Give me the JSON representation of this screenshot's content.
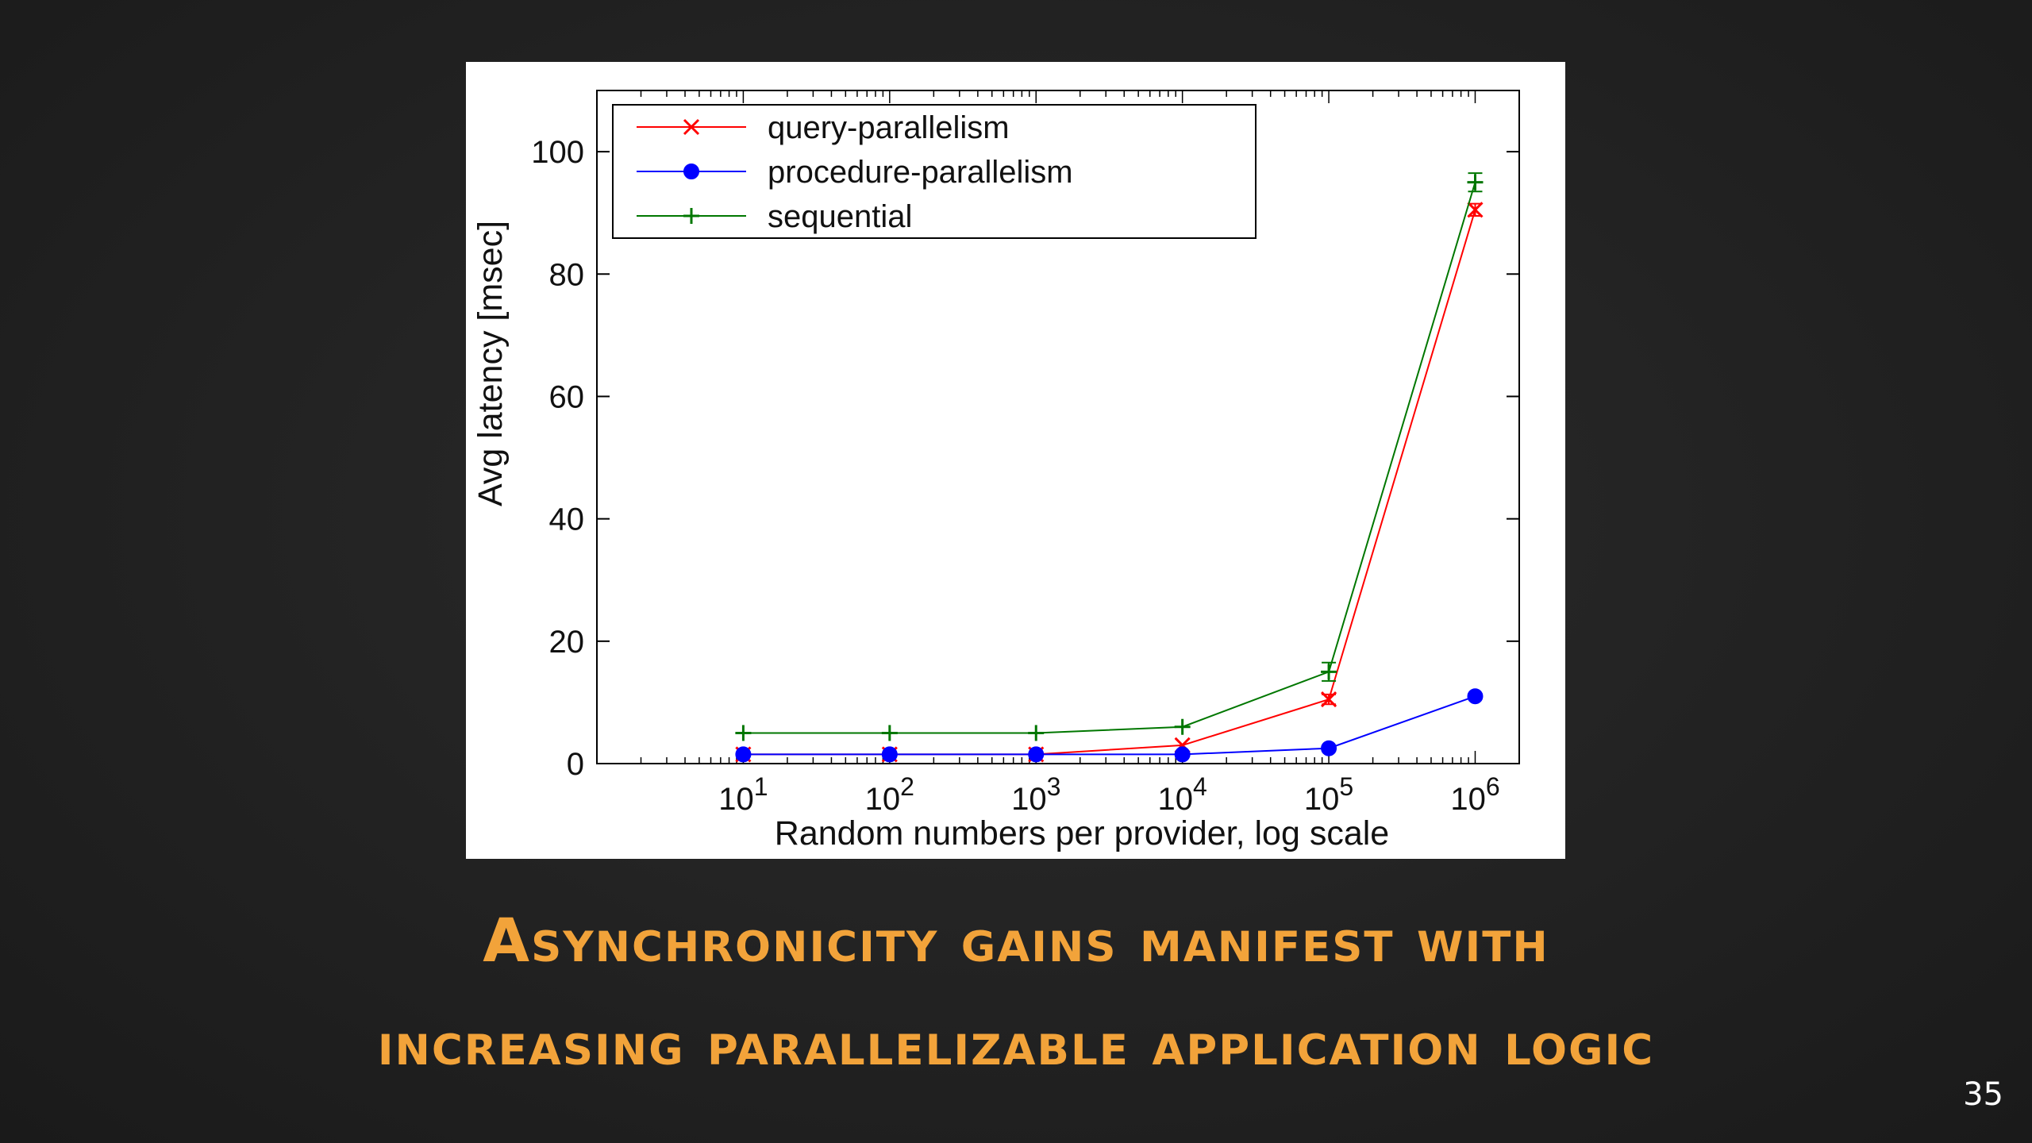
{
  "slide": {
    "caption_line1": "Asynchronicity gains manifest with",
    "caption_line2": "increasing parallelizable application logic",
    "page_number": "35",
    "caption_color": "#f2a33a"
  },
  "chart_data": {
    "type": "line",
    "title": "",
    "xlabel": "Random numbers per provider, log scale",
    "ylabel": "Avg latency [msec]",
    "x_scale": "log",
    "x": [
      10,
      100,
      1000,
      10000,
      100000,
      1000000
    ],
    "x_tick_labels": [
      {
        "base": "10",
        "exp": "1"
      },
      {
        "base": "10",
        "exp": "2"
      },
      {
        "base": "10",
        "exp": "3"
      },
      {
        "base": "10",
        "exp": "4"
      },
      {
        "base": "10",
        "exp": "5"
      },
      {
        "base": "10",
        "exp": "6"
      }
    ],
    "xlim": [
      1,
      2000000
    ],
    "ylim": [
      0,
      110
    ],
    "y_ticks": [
      0,
      20,
      40,
      60,
      80,
      100
    ],
    "grid": false,
    "legend_position": "top-left",
    "series": [
      {
        "name": "query-parallelism",
        "color": "#ff0000",
        "marker": "x",
        "values": [
          1.5,
          1.5,
          1.5,
          3,
          10.5,
          90.5
        ],
        "err": [
          0,
          0,
          0,
          0,
          0.8,
          1
        ]
      },
      {
        "name": "procedure-parallelism",
        "color": "#0000ff",
        "marker": "o",
        "values": [
          1.5,
          1.5,
          1.5,
          1.5,
          2.5,
          11
        ],
        "err": [
          0,
          0,
          0,
          0,
          0,
          0
        ]
      },
      {
        "name": "sequential",
        "color": "#007700",
        "marker": "+",
        "values": [
          5,
          5,
          5,
          6,
          15,
          95
        ],
        "err": [
          0,
          0,
          0,
          0,
          1.5,
          1.5
        ]
      }
    ]
  }
}
